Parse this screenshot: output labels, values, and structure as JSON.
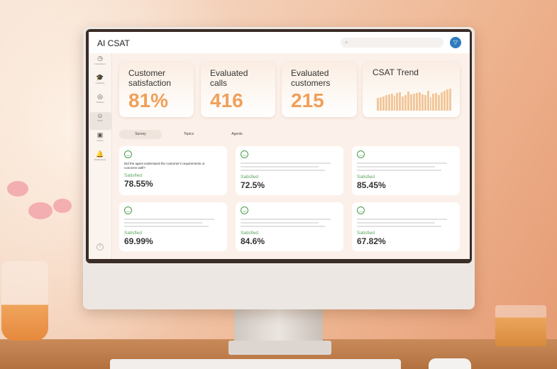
{
  "app": {
    "title": "AI CSAT",
    "search_icon": "search-icon",
    "avatar_icon": "filter-icon"
  },
  "sidebar": {
    "items": [
      {
        "label": "Interactions",
        "icon": "clock-icon",
        "glyph": "◷"
      },
      {
        "label": "Coaching",
        "icon": "graduation-cap-icon",
        "glyph": "🎓"
      },
      {
        "label": "Trackers",
        "icon": "target-icon",
        "glyph": "◎"
      },
      {
        "label": "CSAT",
        "icon": "smile-icon",
        "glyph": "☺",
        "active": true
      },
      {
        "label": "Library",
        "icon": "library-icon",
        "glyph": "▣"
      },
      {
        "label": "Notifications",
        "icon": "bell-icon",
        "glyph": "🔔"
      }
    ],
    "help": "?"
  },
  "kpis": [
    {
      "label": "Customer satisfaction",
      "value": "81%"
    },
    {
      "label": "Evaluated calls",
      "value": "416"
    },
    {
      "label": "Evaluated customers",
      "value": "215"
    }
  ],
  "trend": {
    "label": "CSAT Trend",
    "values": [
      45,
      48,
      50,
      55,
      58,
      60,
      52,
      62,
      65,
      50,
      55,
      68,
      57,
      60,
      62,
      65,
      58,
      55,
      70,
      48,
      60,
      62,
      55,
      65,
      70,
      75,
      78
    ]
  },
  "tabs": [
    {
      "label": "Survey",
      "active": true
    },
    {
      "label": "Topics"
    },
    {
      "label": "Agents"
    }
  ],
  "survey": [
    {
      "question": "Did the agent understand the customer's requirements or concerns well?",
      "status": "Satisfied",
      "percent": "78.55%"
    },
    {
      "status": "Satisfied",
      "percent": "72.5%"
    },
    {
      "status": "Satisfied",
      "percent": "85.45%"
    },
    {
      "status": "Satisfied",
      "percent": "69.99%"
    },
    {
      "status": "Satisfied",
      "percent": "84.6%"
    },
    {
      "status": "Satisfied",
      "percent": "67.82%"
    }
  ],
  "colors": {
    "accent": "#f0a05a",
    "satisfied": "#5aa55a",
    "avatar": "#2f7bbf"
  }
}
